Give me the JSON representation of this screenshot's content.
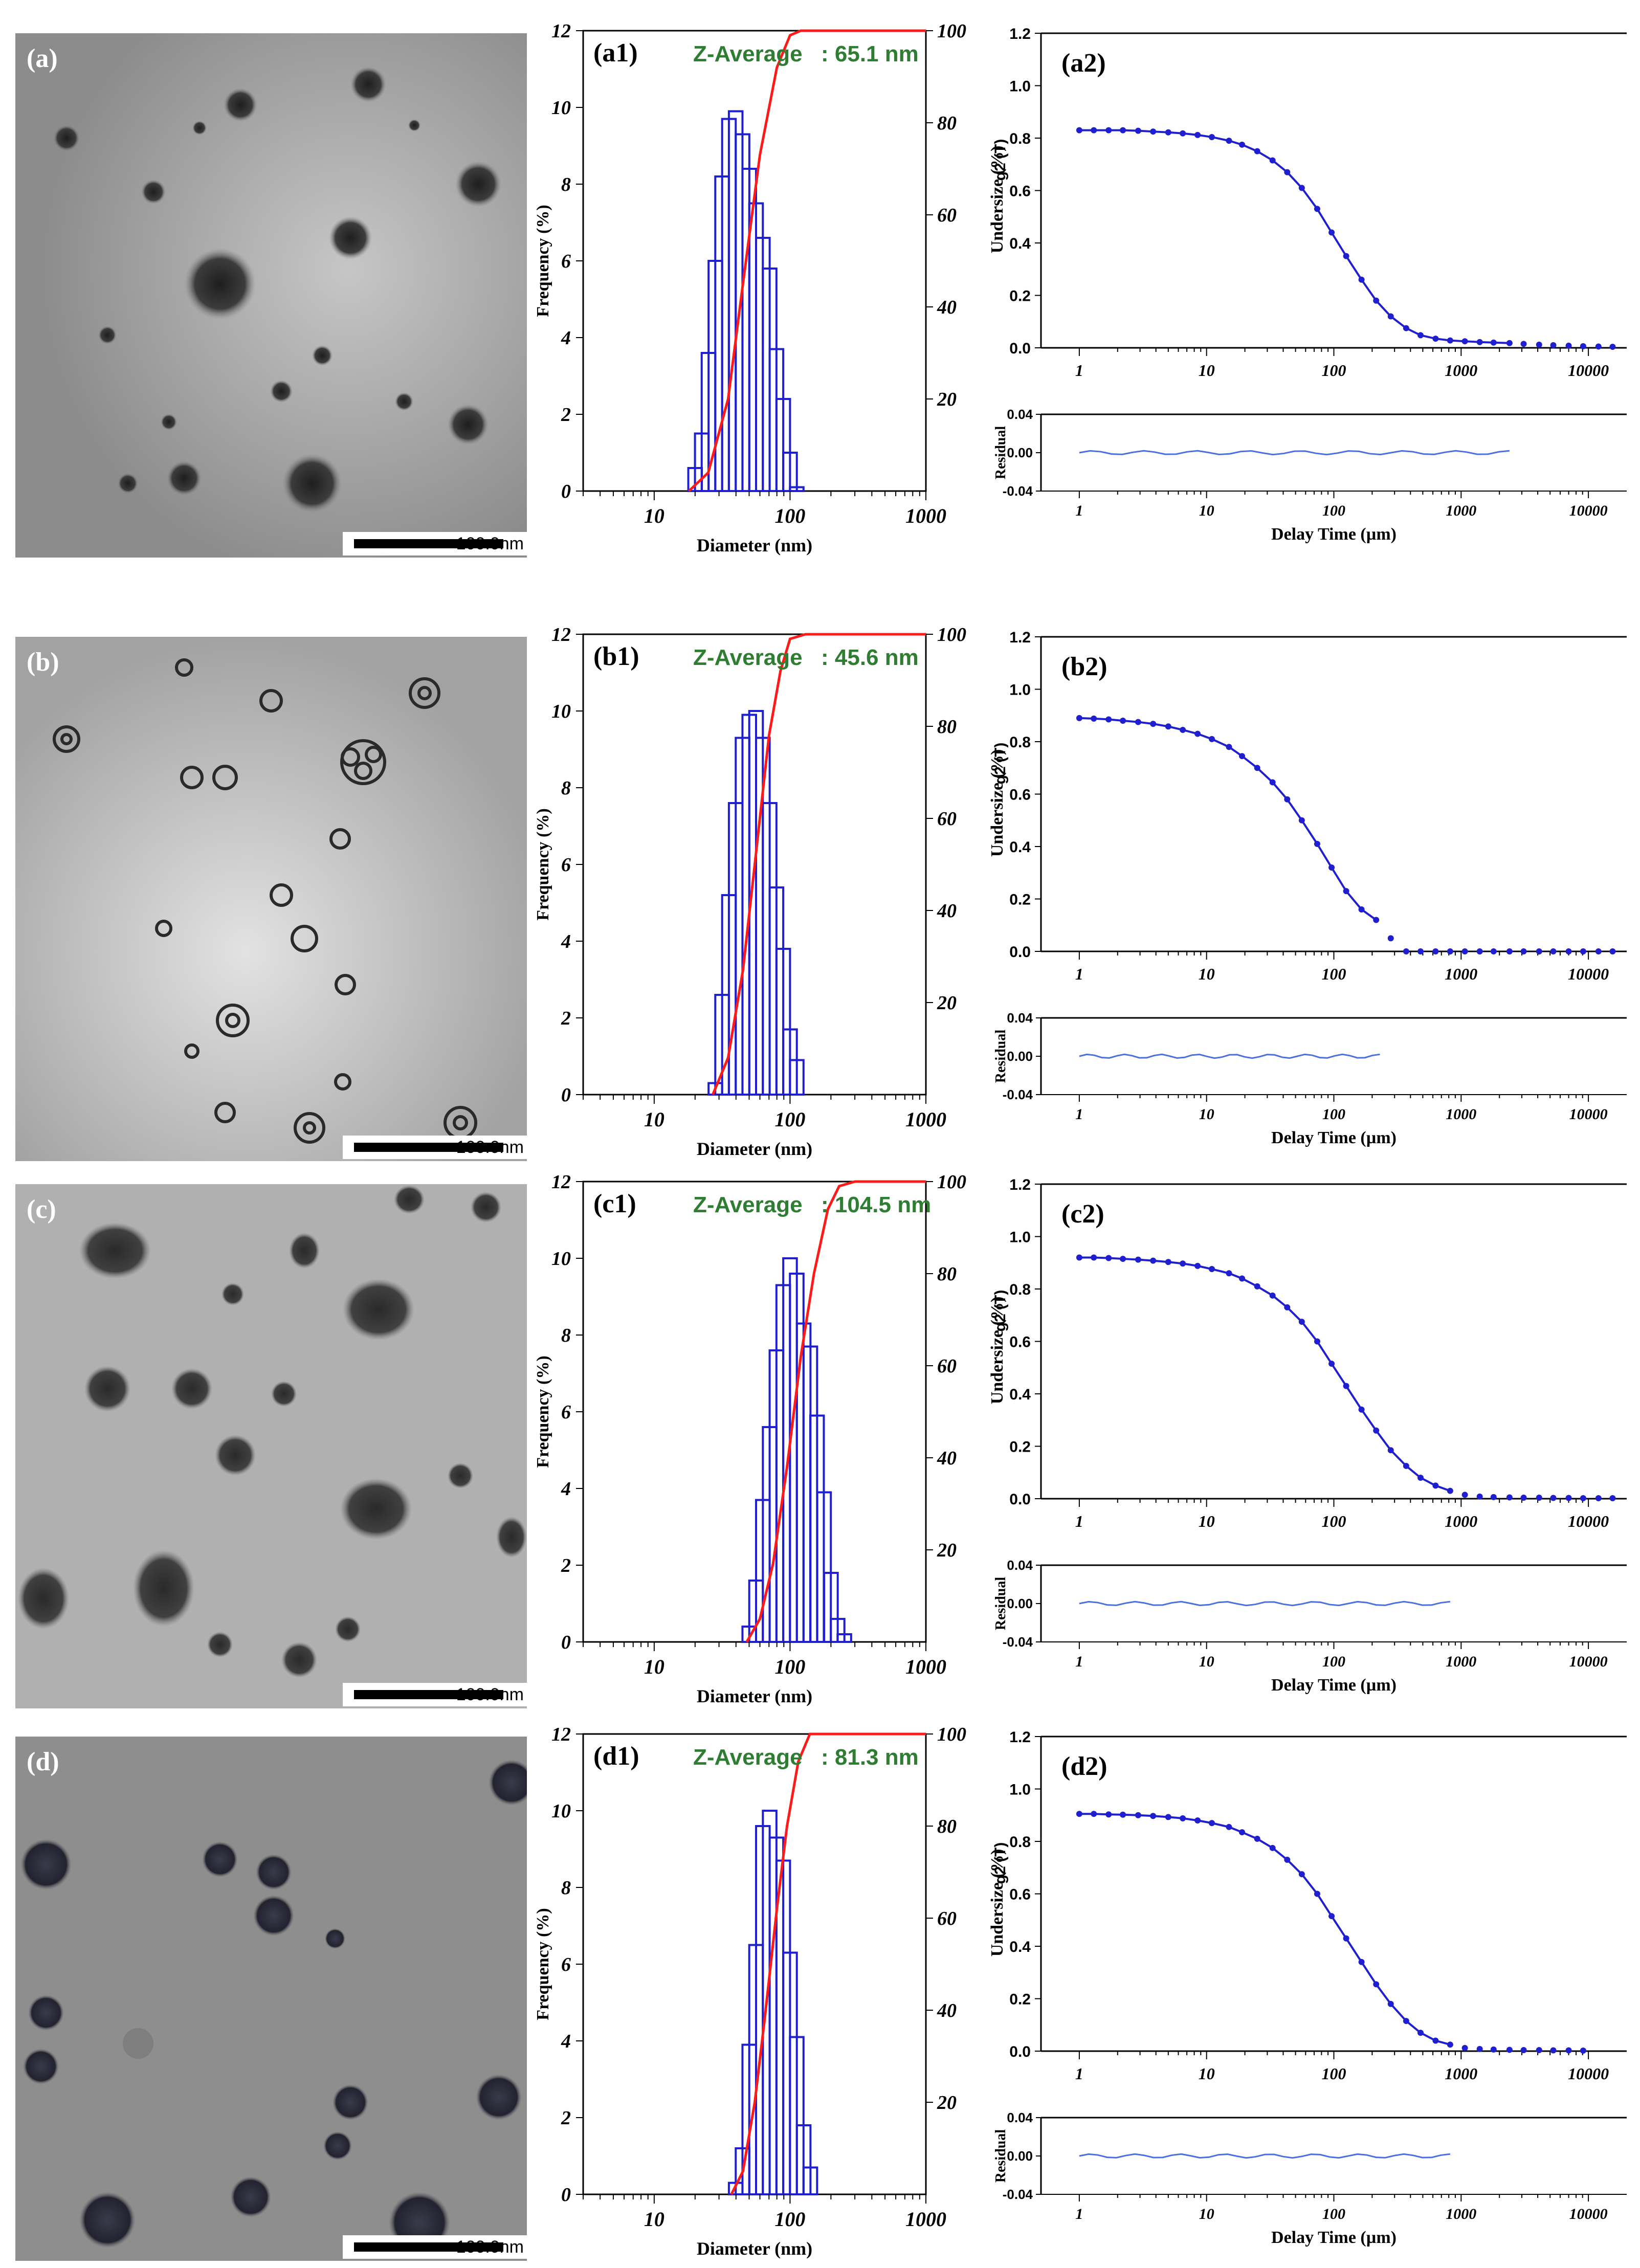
{
  "colors": {
    "hist": "#1f1fd0",
    "cdf": "#ff1a1a",
    "fit": "#1f1fd0",
    "residual": "#4a6fe0",
    "zavg": "#2e7d32"
  },
  "rows": [
    {
      "tem": {
        "label": "(a)",
        "scale": "100.0nm"
      },
      "dist": {
        "label": "(a1)",
        "zavg_label": "Z-Average",
        "zavg_value": ": 65.1 nm"
      },
      "corr": {
        "label": "(a2)"
      }
    },
    {
      "tem": {
        "label": "(b)",
        "scale": "100.0nm"
      },
      "dist": {
        "label": "(b1)",
        "zavg_label": "Z-Average",
        "zavg_value": ": 45.6 nm"
      },
      "corr": {
        "label": "(b2)"
      }
    },
    {
      "tem": {
        "label": "(c)",
        "scale": "100.0nm"
      },
      "dist": {
        "label": "(c1)",
        "zavg_label": "Z-Average",
        "zavg_value": ": 104.5 nm"
      },
      "corr": {
        "label": "(c2)"
      }
    },
    {
      "tem": {
        "label": "(d)",
        "scale": "100.0nm"
      },
      "dist": {
        "label": "(d1)",
        "zavg_label": "Z-Average",
        "zavg_value": ": 81.3 nm"
      },
      "corr": {
        "label": "(d2)"
      }
    }
  ],
  "chart_data": [
    {
      "panel": "a1",
      "type": "bar",
      "xlabel": "Diameter (nm)",
      "ylabel": "Frequency (%)",
      "y2label": "Undersize (%)",
      "xscale": "log",
      "xlim": [
        3,
        1000
      ],
      "ylim": [
        0,
        12
      ],
      "y2lim": [
        0,
        100
      ],
      "xticks": [
        "10",
        "100",
        "1000"
      ],
      "yticks": [
        "0",
        "2",
        "4",
        "6",
        "8",
        "10",
        "12"
      ],
      "y2ticks": [
        "20",
        "40",
        "60",
        "80",
        "100"
      ],
      "bins_x": [
        20,
        22.4,
        25.1,
        28.2,
        31.6,
        35.5,
        39.8,
        44.7,
        50.1,
        56.2,
        63.1,
        70.8,
        79.4,
        89.1,
        100,
        112
      ],
      "values": [
        0.6,
        1.5,
        3.6,
        6.0,
        8.2,
        9.7,
        9.9,
        9.3,
        8.4,
        7.5,
        6.6,
        5.8,
        3.7,
        2.4,
        1.0,
        0.1
      ],
      "cdf_x": [
        18,
        25,
        35,
        45,
        60,
        80,
        100,
        120,
        1000
      ],
      "cdf_y": [
        0,
        4,
        20,
        45,
        73,
        92,
        99,
        100,
        100
      ]
    },
    {
      "panel": "a2",
      "type": "scatter",
      "xlabel": "",
      "ylabel": "g2 (T)",
      "xscale": "log",
      "xlim": [
        0.5,
        20000
      ],
      "ylim": [
        0,
        1.2
      ],
      "xticks": [
        "1",
        "10",
        "100",
        "1000",
        "10000"
      ],
      "yticks": [
        "0.0",
        "0.2",
        "0.4",
        "0.6",
        "0.8",
        "1.0",
        "1.2"
      ],
      "x": [
        1,
        1.3,
        1.7,
        2.2,
        2.9,
        3.8,
        5,
        6.5,
        8.5,
        11,
        15,
        19,
        25,
        33,
        43,
        56,
        74,
        96,
        125,
        165,
        215,
        280,
        370,
        480,
        630,
        820,
        1070,
        1400,
        1800,
        2400,
        3100,
        4100,
        5300,
        7000,
        9100,
        12000,
        15500
      ],
      "y": [
        0.83,
        0.83,
        0.83,
        0.83,
        0.828,
        0.825,
        0.822,
        0.818,
        0.812,
        0.804,
        0.79,
        0.775,
        0.75,
        0.715,
        0.67,
        0.61,
        0.53,
        0.44,
        0.35,
        0.26,
        0.18,
        0.12,
        0.075,
        0.048,
        0.035,
        0.028,
        0.025,
        0.022,
        0.02,
        0.018,
        0.015,
        0.012,
        0.01,
        0.008,
        0.006,
        0.005,
        0.004
      ],
      "fit_end": 2400,
      "residual": {
        "ylabel": "Residual",
        "xlabel": "Delay Time (µm)",
        "ylim": [
          -0.04,
          0.04
        ],
        "yticks": [
          "0.04",
          "0.00",
          "-0.04"
        ],
        "x_range": [
          1,
          2400
        ]
      }
    },
    {
      "panel": "b1",
      "type": "bar",
      "xlabel": "Diameter (nm)",
      "ylabel": "Frequency (%)",
      "y2label": "Undersize (%)",
      "xscale": "log",
      "xlim": [
        3,
        1000
      ],
      "ylim": [
        0,
        12
      ],
      "y2lim": [
        0,
        100
      ],
      "xticks": [
        "10",
        "100",
        "1000"
      ],
      "yticks": [
        "0",
        "2",
        "4",
        "6",
        "8",
        "10",
        "12"
      ],
      "y2ticks": [
        "20",
        "40",
        "60",
        "80",
        "100"
      ],
      "bins_x": [
        28.2,
        31.6,
        35.5,
        39.8,
        44.7,
        50.1,
        56.2,
        63.1,
        70.8,
        79.4,
        89.1,
        100,
        112
      ],
      "values": [
        0.3,
        2.6,
        5.2,
        7.6,
        9.3,
        9.9,
        10.0,
        9.3,
        7.6,
        5.4,
        3.8,
        1.7,
        0.9
      ],
      "cdf_x": [
        27,
        35,
        45,
        55,
        70,
        85,
        100,
        130,
        1000
      ],
      "cdf_y": [
        0,
        8,
        27,
        50,
        78,
        92,
        99,
        100,
        100
      ]
    },
    {
      "panel": "b2",
      "type": "scatter",
      "xlabel": "",
      "ylabel": "g2 (T)",
      "xscale": "log",
      "xlim": [
        0.5,
        20000
      ],
      "ylim": [
        0,
        1.2
      ],
      "xticks": [
        "1",
        "10",
        "100",
        "1000",
        "10000"
      ],
      "yticks": [
        "0.0",
        "0.2",
        "0.4",
        "0.6",
        "0.8",
        "1.0",
        "1.2"
      ],
      "x": [
        1,
        1.3,
        1.7,
        2.2,
        2.9,
        3.8,
        5,
        6.5,
        8.5,
        11,
        15,
        19,
        25,
        33,
        43,
        56,
        74,
        96,
        125,
        165,
        215,
        280,
        370,
        480,
        630,
        820,
        1070,
        1400,
        1800,
        2400,
        3100,
        4100,
        5300,
        7000,
        9100,
        12000,
        15500
      ],
      "y": [
        0.89,
        0.888,
        0.885,
        0.88,
        0.875,
        0.868,
        0.858,
        0.845,
        0.83,
        0.81,
        0.78,
        0.745,
        0.7,
        0.645,
        0.58,
        0.5,
        0.41,
        0.32,
        0.23,
        0.16,
        0.12,
        0.05,
        0.0,
        0.0,
        0.0,
        0.0,
        0.0,
        0.0,
        0.0,
        0.0,
        0.0,
        0.0,
        0.0,
        0.0,
        0.0,
        0.0,
        0.0
      ],
      "fit_end": 215,
      "residual": {
        "ylabel": "Residual",
        "xlabel": "Delay Time (µm)",
        "ylim": [
          -0.04,
          0.04
        ],
        "yticks": [
          "0.04",
          "0.00",
          "-0.04"
        ],
        "x_range": [
          1,
          230
        ]
      }
    },
    {
      "panel": "c1",
      "type": "bar",
      "xlabel": "Diameter (nm)",
      "ylabel": "Frequency (%)",
      "y2label": "Undersize (%)",
      "xscale": "log",
      "xlim": [
        3,
        1000
      ],
      "ylim": [
        0,
        12
      ],
      "y2lim": [
        0,
        100
      ],
      "xticks": [
        "10",
        "100",
        "1000"
      ],
      "yticks": [
        "0",
        "2",
        "4",
        "6",
        "8",
        "10",
        "12"
      ],
      "y2ticks": [
        "20",
        "40",
        "60",
        "80",
        "100"
      ],
      "bins_x": [
        50.1,
        56.2,
        63.1,
        70.8,
        79.4,
        89.1,
        100,
        112,
        126,
        141,
        158,
        178,
        200,
        224,
        251
      ],
      "values": [
        0.4,
        1.6,
        3.7,
        5.6,
        7.6,
        9.3,
        10.0,
        9.6,
        8.3,
        7.7,
        5.9,
        3.9,
        1.8,
        0.6,
        0.2
      ],
      "cdf_x": [
        48,
        60,
        75,
        95,
        120,
        150,
        190,
        230,
        300,
        1000
      ],
      "cdf_y": [
        0,
        5,
        17,
        38,
        62,
        80,
        94,
        99,
        100,
        100
      ]
    },
    {
      "panel": "c2",
      "type": "scatter",
      "xlabel": "",
      "ylabel": "g2 (T)",
      "xscale": "log",
      "xlim": [
        0.5,
        20000
      ],
      "ylim": [
        0,
        1.2
      ],
      "xticks": [
        "1",
        "10",
        "100",
        "1000",
        "10000"
      ],
      "yticks": [
        "0.0",
        "0.2",
        "0.4",
        "0.6",
        "0.8",
        "1.0",
        "1.2"
      ],
      "x": [
        1,
        1.3,
        1.7,
        2.2,
        2.9,
        3.8,
        5,
        6.5,
        8.5,
        11,
        15,
        19,
        25,
        33,
        43,
        56,
        74,
        96,
        125,
        165,
        215,
        280,
        370,
        480,
        630,
        820,
        1070,
        1400,
        1800,
        2400,
        3100,
        4100,
        5300,
        7000,
        9100,
        12000,
        15500
      ],
      "y": [
        0.92,
        0.92,
        0.918,
        0.915,
        0.912,
        0.908,
        0.903,
        0.897,
        0.888,
        0.876,
        0.86,
        0.84,
        0.81,
        0.775,
        0.73,
        0.675,
        0.6,
        0.515,
        0.43,
        0.34,
        0.26,
        0.185,
        0.125,
        0.08,
        0.05,
        0.03,
        0.015,
        0.008,
        0.006,
        0.005,
        0.004,
        0.004,
        0.003,
        0.003,
        0.002,
        0.002,
        0.002
      ],
      "fit_end": 820,
      "residual": {
        "ylabel": "Residual",
        "xlabel": "Delay Time (µm)",
        "ylim": [
          -0.04,
          0.04
        ],
        "yticks": [
          "0.04",
          "0.00",
          "-0.04"
        ],
        "x_range": [
          1,
          820
        ]
      }
    },
    {
      "panel": "d1",
      "type": "bar",
      "xlabel": "Diameter (nm)",
      "ylabel": "Frequency (%)",
      "y2label": "Undersize (%)",
      "xscale": "log",
      "xlim": [
        3,
        1000
      ],
      "ylim": [
        0,
        12
      ],
      "y2lim": [
        0,
        100
      ],
      "xticks": [
        "10",
        "100",
        "1000"
      ],
      "yticks": [
        "0",
        "2",
        "4",
        "6",
        "8",
        "10",
        "12"
      ],
      "y2ticks": [
        "20",
        "40",
        "60",
        "80",
        "100"
      ],
      "bins_x": [
        39.8,
        44.7,
        50.1,
        56.2,
        63.1,
        70.8,
        79.4,
        89.1,
        100,
        112,
        126,
        141
      ],
      "values": [
        0.3,
        1.2,
        3.9,
        6.5,
        9.6,
        10.0,
        9.3,
        8.7,
        6.3,
        4.1,
        1.8,
        0.7
      ],
      "cdf_x": [
        37,
        45,
        55,
        65,
        80,
        95,
        115,
        140,
        1000
      ],
      "cdf_y": [
        0,
        5,
        20,
        38,
        62,
        80,
        94,
        100,
        100
      ]
    },
    {
      "panel": "d2",
      "type": "scatter",
      "xlabel": "",
      "ylabel": "g2 (T)",
      "xscale": "log",
      "xlim": [
        0.5,
        20000
      ],
      "ylim": [
        0,
        1.2
      ],
      "xticks": [
        "1",
        "10",
        "100",
        "1000",
        "10000"
      ],
      "yticks": [
        "0.0",
        "0.2",
        "0.4",
        "0.6",
        "0.8",
        "1.0",
        "1.2"
      ],
      "x": [
        1,
        1.3,
        1.7,
        2.2,
        2.9,
        3.8,
        5,
        6.5,
        8.5,
        11,
        15,
        19,
        25,
        33,
        43,
        56,
        74,
        96,
        125,
        165,
        215,
        280,
        370,
        480,
        630,
        820,
        1070,
        1400,
        1800,
        2400,
        3100,
        4100,
        5300,
        7000,
        9100
      ],
      "y": [
        0.905,
        0.905,
        0.903,
        0.902,
        0.9,
        0.897,
        0.893,
        0.888,
        0.88,
        0.87,
        0.855,
        0.835,
        0.81,
        0.775,
        0.73,
        0.675,
        0.6,
        0.515,
        0.43,
        0.34,
        0.255,
        0.18,
        0.115,
        0.07,
        0.04,
        0.025,
        0.012,
        0.008,
        0.006,
        0.005,
        0.004,
        0.004,
        0.003,
        0.003,
        0.002
      ],
      "fit_end": 820,
      "residual": {
        "ylabel": "Residual",
        "xlabel": "Delay Time (µm)",
        "ylim": [
          -0.04,
          0.04
        ],
        "yticks": [
          "0.04",
          "0.00",
          "-0.04"
        ],
        "x_range": [
          1,
          820
        ]
      }
    }
  ]
}
